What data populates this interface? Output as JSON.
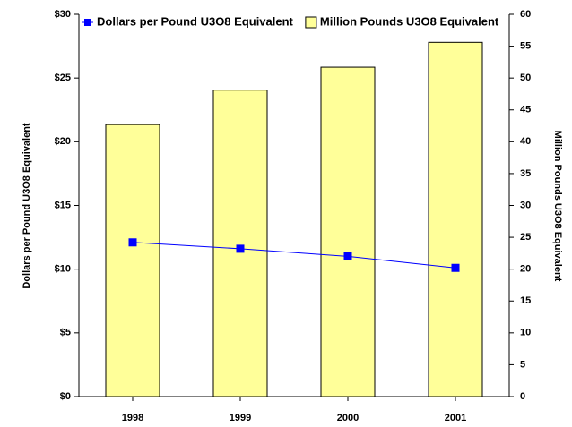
{
  "chart_data": {
    "type": "combo",
    "categories": [
      "1998",
      "1999",
      "2000",
      "2001"
    ],
    "y_label": "Dollars per Pound U3O8 Equivalent",
    "y2_label": "Million Pounds U3O8 Equivalent",
    "ylim": [
      0,
      30
    ],
    "yticks": [
      {
        "value": 0,
        "label": "$0"
      },
      {
        "value": 5,
        "label": "$5"
      },
      {
        "value": 10,
        "label": "$10"
      },
      {
        "value": 15,
        "label": "$15"
      },
      {
        "value": 20,
        "label": "$20"
      },
      {
        "value": 25,
        "label": "$25"
      },
      {
        "value": 30,
        "label": "$30"
      }
    ],
    "y2lim": [
      0,
      60
    ],
    "y2ticks": [
      0,
      5,
      10,
      15,
      20,
      25,
      30,
      35,
      40,
      45,
      50,
      55,
      60
    ],
    "grid": false,
    "legend": "top",
    "series": [
      {
        "name": "Dollars per Pound U3O8 Equivalent",
        "type": "line",
        "color": "#0000ff",
        "values": [
          12.1,
          11.6,
          11.0,
          10.1
        ]
      },
      {
        "name": "Million Pounds U3O8 Equivalent",
        "type": "bar",
        "axis": "y2",
        "color": "#ffff99",
        "values": [
          42.7,
          48.1,
          51.7,
          55.6
        ]
      }
    ]
  }
}
